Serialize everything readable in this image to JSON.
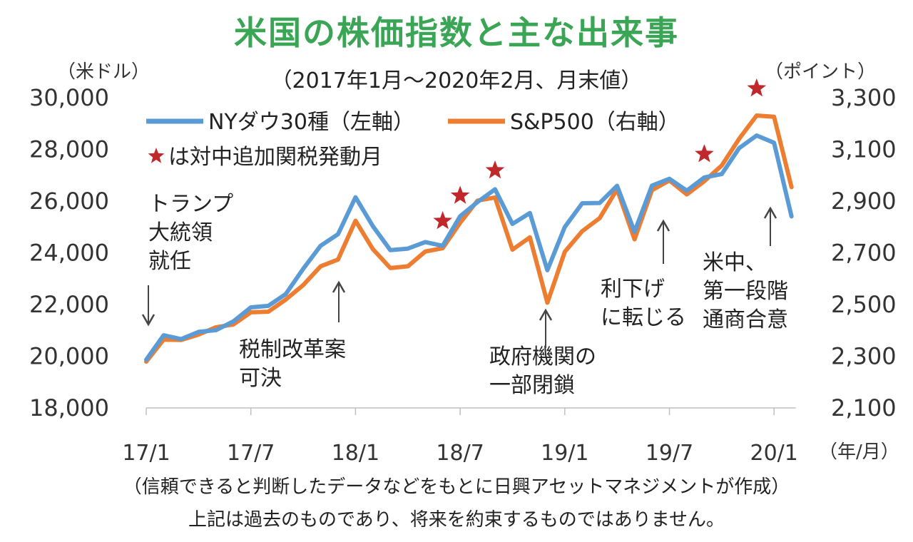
{
  "title": "米国の株価指数と主な出来事",
  "subtitle": "（2017年1月～2020年2月、月末値）",
  "left_unit": "（米ドル）",
  "right_unit": "（ポイント）",
  "x_unit": "（年/月）",
  "footnote_1": "（信頼できると判断したデータなどをもとに日興アセットマネジメントが作成）",
  "footnote_2": "上記は過去のものであり、将来を約束するものではありません。",
  "colors": {
    "dow": "#5b9bd5",
    "sp": "#ed7d31",
    "star": "#c0282b",
    "title": "#3aa655"
  },
  "chart_data": {
    "type": "line",
    "x": [
      "17/1",
      "17/2",
      "17/3",
      "17/4",
      "17/5",
      "17/6",
      "17/7",
      "17/8",
      "17/9",
      "17/10",
      "17/11",
      "17/12",
      "18/1",
      "18/2",
      "18/3",
      "18/4",
      "18/5",
      "18/6",
      "18/7",
      "18/8",
      "18/9",
      "18/10",
      "18/11",
      "18/12",
      "19/1",
      "19/2",
      "19/3",
      "19/4",
      "19/5",
      "19/6",
      "19/7",
      "19/8",
      "19/9",
      "19/10",
      "19/11",
      "19/12",
      "20/1",
      "20/2"
    ],
    "xticks": [
      "17/1",
      "17/7",
      "18/1",
      "18/7",
      "19/1",
      "19/7",
      "20/1"
    ],
    "series": [
      {
        "name": "NYダウ30種（左軸）",
        "axis": "left",
        "values": [
          19864,
          20812,
          20663,
          20941,
          21009,
          21350,
          21891,
          21948,
          22405,
          23377,
          24272,
          24719,
          26149,
          25029,
          24103,
          24163,
          24416,
          24271,
          25415,
          25965,
          26458,
          25116,
          25538,
          23327,
          24999,
          25916,
          25929,
          26593,
          24815,
          26600,
          26864,
          26403,
          26917,
          27046,
          28051,
          28538,
          28256,
          25409
        ]
      },
      {
        "name": "S&P500（右軸）",
        "axis": "right",
        "values": [
          2279,
          2364,
          2363,
          2384,
          2412,
          2423,
          2470,
          2472,
          2519,
          2575,
          2648,
          2674,
          2824,
          2714,
          2641,
          2648,
          2705,
          2718,
          2816,
          2902,
          2914,
          2712,
          2760,
          2507,
          2704,
          2784,
          2834,
          2946,
          2752,
          2942,
          2980,
          2926,
          2977,
          3038,
          3141,
          3231,
          3226,
          2954
        ]
      }
    ],
    "left_ylim": [
      18000,
      30000
    ],
    "left_yticks": [
      "18,000",
      "20,000",
      "22,000",
      "24,000",
      "26,000",
      "28,000",
      "30,000"
    ],
    "right_ylim": [
      2100,
      3300
    ],
    "right_yticks": [
      "2,100",
      "2,300",
      "2,500",
      "2,700",
      "2,900",
      "3,100",
      "3,300"
    ],
    "legend": {
      "placement": "top-left",
      "star_note": "は対中追加関税発動月"
    },
    "stars": [
      "18/6",
      "18/7",
      "18/9",
      "19/9",
      "19/12"
    ],
    "annotations": [
      {
        "lines": [
          "トランプ",
          "大統領",
          "就任"
        ],
        "x": "17/1",
        "arrow": "down"
      },
      {
        "lines": [
          "税制改革案",
          "可決"
        ],
        "x": "17/12",
        "arrow": "up"
      },
      {
        "lines": [
          "政府機関の",
          "一部閉鎖"
        ],
        "x": "18/12",
        "arrow": "up"
      },
      {
        "lines": [
          "利下げ",
          "に転じる"
        ],
        "x": "19/7",
        "arrow": "up"
      },
      {
        "lines": [
          "米中、",
          "第一段階",
          "通商合意"
        ],
        "x": "20/1",
        "arrow": "up"
      }
    ]
  }
}
